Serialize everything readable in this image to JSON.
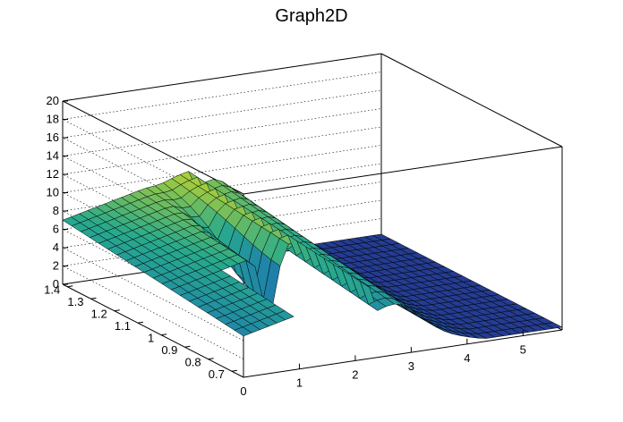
{
  "chart_data": {
    "type": "surface",
    "title": "Graph2D",
    "x_axis": {
      "ticks": [
        "0",
        "1",
        "2",
        "3",
        "4",
        "5"
      ],
      "range": [
        0,
        5.7
      ]
    },
    "y_axis": {
      "ticks": [
        "0.7",
        "0.8",
        "0.9",
        "1",
        "1.1",
        "1.2",
        "1.3",
        "1.4"
      ],
      "range": [
        0.65,
        1.42
      ]
    },
    "z_axis": {
      "ticks": [
        "0",
        "2",
        "4",
        "6",
        "8",
        "10",
        "12",
        "14",
        "16",
        "18",
        "20"
      ],
      "range": [
        0,
        20
      ]
    },
    "grid": true,
    "palette": "viridis-like",
    "colors": {
      "low": "#24378f",
      "mid": "#1ea1a1",
      "high": "#f4e21a",
      "top": "#3aa0d0"
    }
  }
}
